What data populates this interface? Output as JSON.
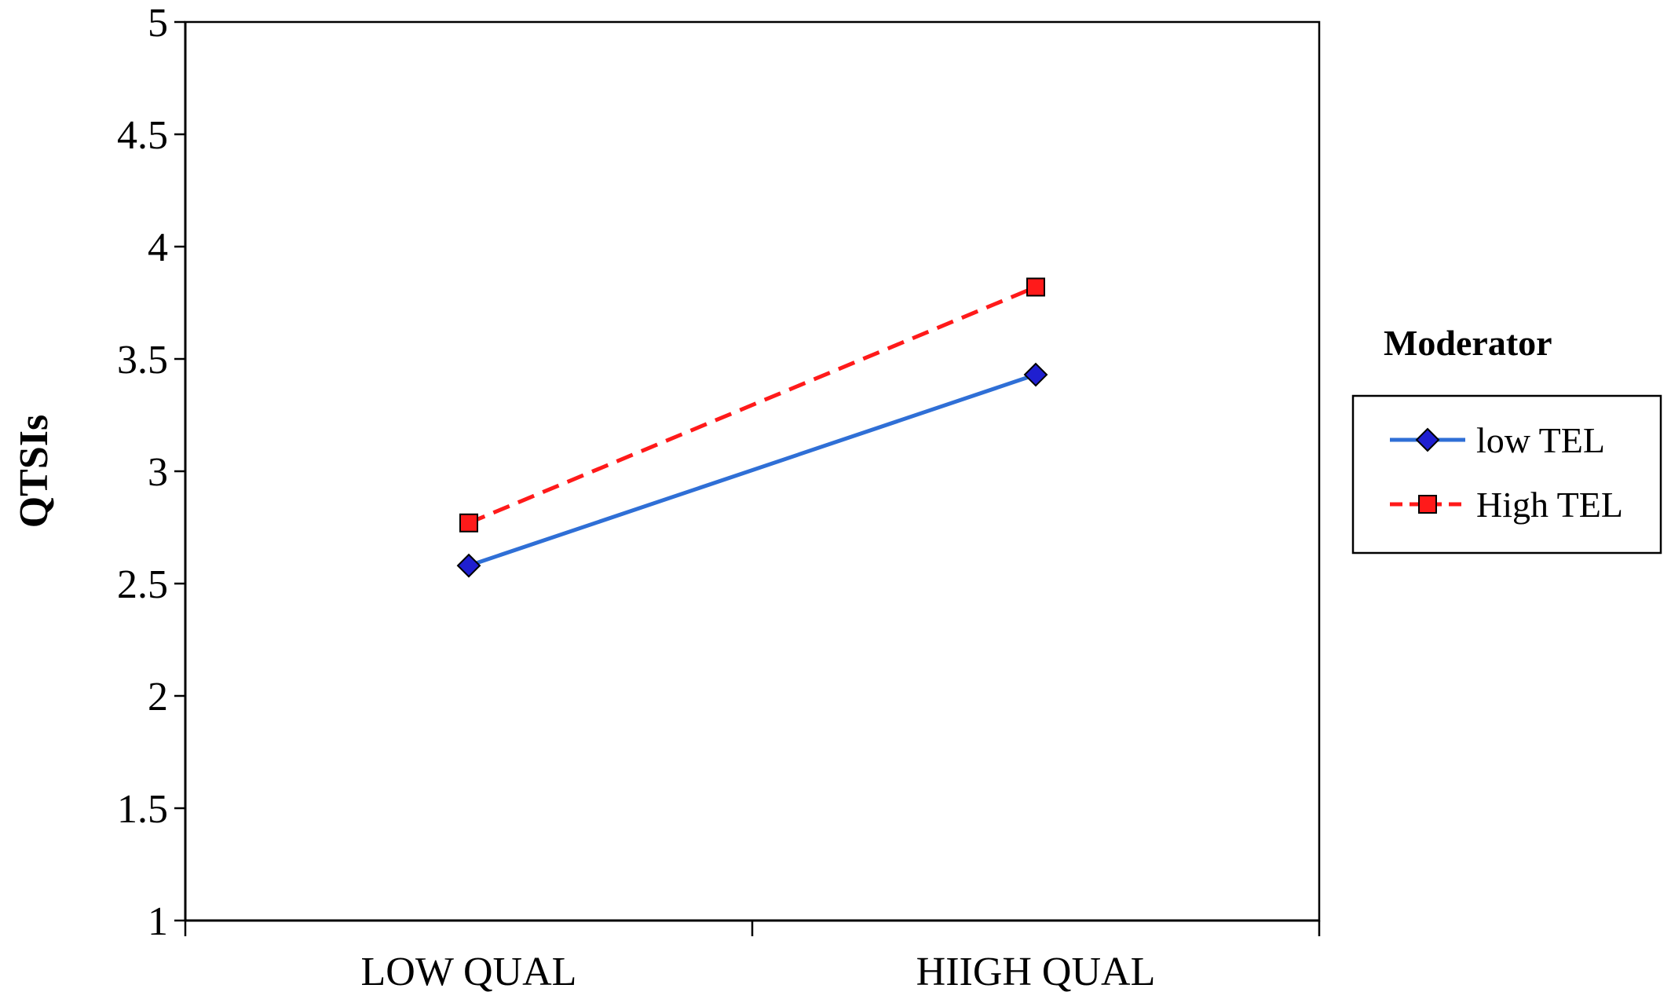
{
  "chart_data": {
    "type": "line",
    "categories": [
      "LOW QUAL",
      "HIIGH QUAL"
    ],
    "ylabel": "QTSIs",
    "xlabel": "",
    "ylim": [
      1,
      5
    ],
    "yticks": [
      1,
      1.5,
      2,
      2.5,
      3,
      3.5,
      4,
      4.5,
      5
    ],
    "ytick_labels": [
      "1",
      "1.5",
      "2",
      "2.5",
      "3",
      "3.5",
      "4",
      "4.5",
      "5"
    ],
    "grid": false,
    "legend": {
      "title": "Moderator",
      "placement": "right"
    },
    "series": [
      {
        "name": "low TEL",
        "values": [
          2.58,
          3.43
        ],
        "color": "#2f6fd6",
        "marker": "diamond",
        "marker_color": "#1f1fd0",
        "line_style": "solid"
      },
      {
        "name": "High TEL",
        "values": [
          2.77,
          3.82
        ],
        "color": "#ff1a1a",
        "marker": "square",
        "marker_color": "#ff1a1a",
        "line_style": "dashed"
      }
    ]
  }
}
